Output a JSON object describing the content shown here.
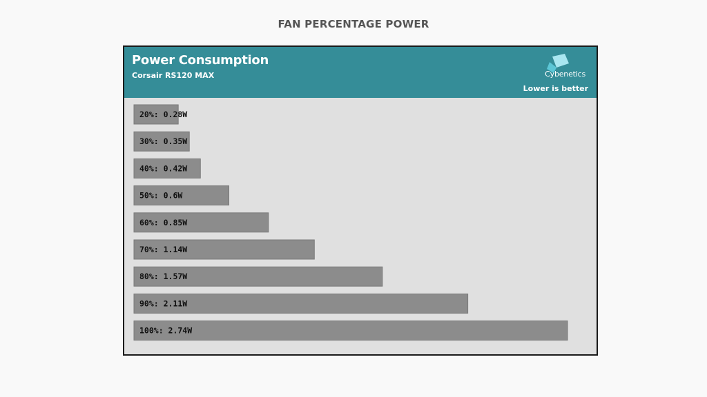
{
  "page": {
    "heading": "FAN PERCENTAGE POWER"
  },
  "chart_header": {
    "title": "Power Consumption",
    "subtitle": "Corsair RS120 MAX",
    "logo_text": "Cybenetics",
    "note": "Lower is better",
    "logo_icon": "cybenetics-logo-icon"
  },
  "colors": {
    "header_bg": "#358d98",
    "plot_bg": "#e0e0e0",
    "bar_fill": "#8c8c8c",
    "bar_stroke": "#7a7a7a",
    "label_text": "#111111",
    "logo_light": "#a9e6f0",
    "logo_dark": "#5cc6d6"
  },
  "chart_data": {
    "type": "bar",
    "orientation": "horizontal",
    "title": "Power Consumption",
    "subtitle": "Corsair RS120 MAX",
    "categories": [
      "20%",
      "30%",
      "40%",
      "50%",
      "60%",
      "70%",
      "80%",
      "90%",
      "100%"
    ],
    "values": [
      0.28,
      0.35,
      0.42,
      0.6,
      0.85,
      1.14,
      1.57,
      2.11,
      2.74
    ],
    "unit": "W",
    "data_labels": [
      "20%: 0.28W",
      "30%: 0.35W",
      "40%: 0.42W",
      "50%: 0.6W",
      "60%: 0.85W",
      "70%: 1.14W",
      "80%: 1.57W",
      "90%: 2.11W",
      "100%: 2.74W"
    ],
    "annotation": "Lower is better",
    "grid": false,
    "legend": "none"
  }
}
